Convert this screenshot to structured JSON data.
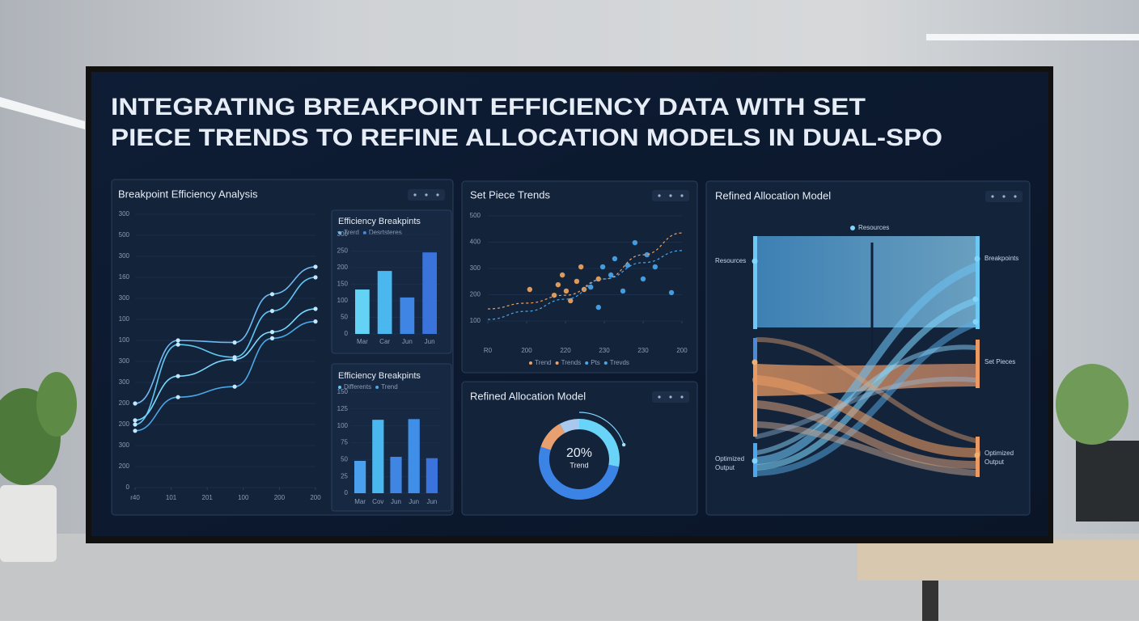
{
  "title_lines": [
    "INTEGRATING BREAKPOINT EFFICIENCY DATA WITH SET",
    "PIECE TRENDS TO REFINE ALLOCATION MODELS IN DUAL-SPO"
  ],
  "chart_data": [
    {
      "type": "line",
      "title": "Breakpoint Efficiency Analysis",
      "grid": true,
      "ylim": [
        0,
        13
      ],
      "xlim": [
        0,
        5
      ],
      "yticks": [
        {
          "value": 13,
          "label": "300"
        },
        {
          "value": 12,
          "label": "500"
        },
        {
          "value": 11,
          "label": "300"
        },
        {
          "value": 10,
          "label": "160"
        },
        {
          "value": 9,
          "label": "300"
        },
        {
          "value": 8,
          "label": "100"
        },
        {
          "value": 7,
          "label": "100"
        },
        {
          "value": 6,
          "label": "300"
        },
        {
          "value": 5,
          "label": "300"
        },
        {
          "value": 4,
          "label": "200"
        },
        {
          "value": 3,
          "label": "200"
        },
        {
          "value": 2,
          "label": "300"
        },
        {
          "value": 1,
          "label": "200"
        },
        0
      ],
      "xticks": [
        {
          "value": 0,
          "label": "r40"
        },
        {
          "value": 1,
          "label": "101"
        },
        {
          "value": 2,
          "label": "201"
        },
        {
          "value": 3,
          "label": "100"
        },
        {
          "value": 4,
          "label": "200"
        },
        {
          "value": 5,
          "label": "200"
        }
      ],
      "x": [
        0,
        1.19,
        2.76,
        3.8,
        5
      ],
      "series": [
        {
          "color": "#6fb8f2",
          "values": [
            4.0,
            7.0,
            6.9,
            9.2,
            10.5
          ]
        },
        {
          "color": "#5ec8f4",
          "values": [
            3.0,
            6.8,
            6.2,
            8.4,
            10.0
          ]
        },
        {
          "color": "#7ad8ff",
          "values": [
            3.2,
            5.3,
            6.1,
            7.4,
            8.5
          ]
        },
        {
          "color": "#4aa8e8",
          "values": [
            2.7,
            4.3,
            4.8,
            7.1,
            7.9
          ]
        }
      ]
    },
    {
      "type": "bar",
      "title": "Efficiency Breakpints",
      "grid": true,
      "ylim": [
        0,
        300
      ],
      "yticks": [
        0,
        50,
        100,
        150,
        200,
        250,
        300
      ],
      "legend": [
        {
          "name": "Trerd",
          "color": "#5ec8f4"
        },
        {
          "name": "Desrtsteres",
          "color": "#3f8fe8"
        }
      ],
      "categories": [
        "Mar",
        "Car",
        "Jun",
        "Jun"
      ],
      "values": [
        134,
        190,
        110,
        246
      ],
      "colors": [
        "#63d2f4",
        "#4ab8ee",
        "#3f86e4",
        "#3a73dc"
      ]
    },
    {
      "type": "bar",
      "title": "Efficiency Breakpints",
      "grid": true,
      "ylim": [
        0,
        150
      ],
      "yticks": [
        0,
        25,
        50,
        75,
        100,
        125,
        150
      ],
      "legend": [
        {
          "name": "Differents",
          "color": "#5ec8f4"
        },
        {
          "name": "Trend",
          "color": "#4aa8e8"
        }
      ],
      "categories": [
        "Mar",
        "Cov",
        "Jun",
        "Jun",
        "Jun"
      ],
      "values": [
        48,
        109,
        54,
        110,
        52
      ],
      "colors": [
        "#4aa0ec",
        "#4ab8ee",
        "#3f86e4",
        "#3f8fe8",
        "#3a73dc"
      ]
    },
    {
      "type": "scatter",
      "title": "Set Piece Trends",
      "grid": true,
      "ylim": [
        100,
        500
      ],
      "yticks": [
        100,
        200,
        300,
        400,
        500
      ],
      "xlim": [
        0,
        5
      ],
      "xticks": [
        {
          "value": 0,
          "label": "R0"
        },
        {
          "value": 1,
          "label": "200"
        },
        {
          "value": 2,
          "label": "220"
        },
        {
          "value": 3,
          "label": "230"
        },
        {
          "value": 4,
          "label": "230"
        },
        {
          "value": 5,
          "label": "200"
        }
      ],
      "legend": [
        {
          "name": "Trend",
          "color": "#f0a060"
        },
        {
          "name": "Trends",
          "color": "#f0a060"
        },
        {
          "name": "Pts",
          "color": "#4aa8e8"
        },
        {
          "name": "Trevds",
          "color": "#4aa8e8"
        }
      ],
      "series": [
        {
          "style": "points",
          "color": "#f3a862",
          "x": [
            1.08,
            1.81,
            1.92,
            2.13,
            2.29,
            2.4,
            2.48,
            2.85,
            2.02,
            1.71
          ],
          "values": [
            220,
            238,
            275,
            177,
            251,
            306,
            220,
            260,
            214,
            198
          ]
        },
        {
          "style": "points",
          "color": "#4aa8f0",
          "x": [
            2.65,
            2.96,
            3.17,
            3.27,
            3.6,
            3.79,
            4.0,
            2.85,
            3.48,
            4.73,
            4.1,
            4.31
          ],
          "values": [
            229,
            306,
            275,
            337,
            312,
            398,
            260,
            152,
            214,
            208,
            352,
            306
          ]
        },
        {
          "style": "dashed",
          "color": "#f0a060",
          "x": [
            0,
            1,
            2,
            3,
            4,
            5
          ],
          "values": [
            146,
            168,
            198,
            260,
            352,
            435
          ]
        },
        {
          "style": "dashed",
          "color": "#4aa8f0",
          "x": [
            0,
            1,
            2,
            3,
            4,
            5
          ],
          "values": [
            106,
            137,
            183,
            260,
            322,
            368
          ]
        }
      ]
    },
    {
      "type": "pie",
      "title": "Refined Allocation Model",
      "values": [
        28,
        52,
        12,
        8
      ],
      "colors": [
        "#6ad4f8",
        "#3b84e6",
        "#e8a070",
        "#a8c8ee"
      ],
      "center_value": 20,
      "center_value_label": "20%",
      "center_label": "Trend"
    }
  ],
  "sankey": {
    "title": "Refined Allocation Model",
    "top_label": "Resources",
    "left_labels": [
      "Resources"
    ],
    "right_labels": [
      "Breakpoints",
      "Set Pieces"
    ],
    "left_output": [
      "Optimized",
      "Output"
    ],
    "right_output": [
      "Optimized",
      "Output"
    ]
  }
}
